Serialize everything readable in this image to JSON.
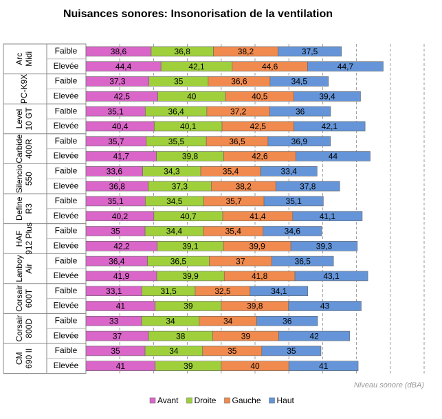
{
  "chart_data": {
    "type": "stacked-bar-horizontal",
    "title": "Nuisances sonores: Insonorisation de la ventilation",
    "x_label": "Niveau sonore (dBA)",
    "groups": [
      "Arc Midi",
      "PC-K9X",
      "Level 10 GT",
      "Carbide 400R",
      "Silencio 550",
      "Define R3",
      "HAF 912 Plus",
      "Lanboy Air",
      "Corsair 600T",
      "Corsair 800D",
      "CM 690 II"
    ],
    "categories": [
      "Faible",
      "Elevée",
      "Faible",
      "Elevée",
      "Faible",
      "Elevée",
      "Faible",
      "Elevée",
      "Faible",
      "Elevée",
      "Faible",
      "Elevée",
      "Faible",
      "Elevée",
      "Faible",
      "Elevée",
      "Faible",
      "Elevée",
      "Faible",
      "Elevée",
      "Faible",
      "Elevée"
    ],
    "xlim": [
      0,
      200
    ],
    "xticks": [
      0,
      20,
      40,
      60,
      80,
      100,
      120,
      140,
      160,
      180,
      200
    ],
    "grid": true,
    "legend": "bottom",
    "series": [
      {
        "name": "Avant",
        "color": "#d966c8",
        "values": [
          38.6,
          44.4,
          37.3,
          42.5,
          35.1,
          40.4,
          35.7,
          41.7,
          33.6,
          36.8,
          35.1,
          40.2,
          35,
          42.2,
          36.4,
          41.9,
          33.1,
          41,
          33,
          37,
          35,
          41
        ],
        "value_labels": [
          "38,6",
          "44,4",
          "37,3",
          "42,5",
          "35,1",
          "40,4",
          "35,7",
          "41,7",
          "33,6",
          "36,8",
          "35,1",
          "40,2",
          "35",
          "42,2",
          "36,4",
          "41,9",
          "33,1",
          "41",
          "33",
          "37",
          "35",
          "41"
        ]
      },
      {
        "name": "Droite",
        "color": "#9fd03c",
        "values": [
          36.8,
          42.1,
          35,
          40,
          36.4,
          40.1,
          35.5,
          39.8,
          34.3,
          37.3,
          34.5,
          40.7,
          34.4,
          39.1,
          36.5,
          39.9,
          31.5,
          39,
          34,
          38,
          34,
          39
        ],
        "value_labels": [
          "36,8",
          "42,1",
          "35",
          "40",
          "36,4",
          "40,1",
          "35,5",
          "39,8",
          "34,3",
          "37,3",
          "34,5",
          "40,7",
          "34,4",
          "39,1",
          "36,5",
          "39,9",
          "31,5",
          "39",
          "34",
          "38",
          "34",
          "39"
        ]
      },
      {
        "name": "Gauche",
        "color": "#f08a4e",
        "values": [
          38.2,
          44.6,
          36.6,
          40.5,
          37.2,
          42.5,
          36.5,
          42.6,
          35.4,
          38.2,
          35.7,
          41.4,
          35.4,
          39.9,
          37,
          41.8,
          32.5,
          39.8,
          34,
          39,
          35,
          40
        ],
        "value_labels": [
          "38,2",
          "44,6",
          "36,6",
          "40,5",
          "37,2",
          "42,5",
          "36,5",
          "42,6",
          "35,4",
          "38,2",
          "35,7",
          "41,4",
          "35,4",
          "39,9",
          "37",
          "41,8",
          "32,5",
          "39,8",
          "34",
          "39",
          "35",
          "40"
        ]
      },
      {
        "name": "Haut",
        "color": "#6595d8",
        "values": [
          37.5,
          44.7,
          34.5,
          39.4,
          36,
          42.1,
          36.9,
          44,
          33.4,
          37.8,
          35.1,
          41.1,
          34.6,
          39.3,
          36.5,
          43.1,
          34.1,
          43,
          36,
          42,
          35,
          41
        ],
        "value_labels": [
          "37,5",
          "44,7",
          "34,5",
          "39,4",
          "36",
          "42,1",
          "36,9",
          "44",
          "33,4",
          "37,8",
          "35,1",
          "41,1",
          "34,6",
          "39,3",
          "36,5",
          "43,1",
          "34,1",
          "43",
          "36",
          "42",
          "35",
          "41"
        ]
      }
    ]
  }
}
